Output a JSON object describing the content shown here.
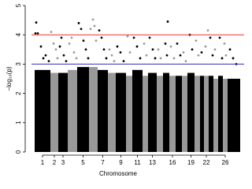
{
  "chart_data": {
    "type": "manhattan",
    "xlabel": "Chromosome",
    "ylabel": "−log₁₀(p)",
    "xlim": [
      0,
      270
    ],
    "ylim": [
      0,
      5
    ],
    "yticks": [
      0,
      1,
      2,
      3,
      4,
      5
    ],
    "thresholds": [
      {
        "value": 4,
        "color": "#e8362e"
      },
      {
        "value": 3,
        "color": "#2b2fb8"
      }
    ],
    "chromosomes": [
      {
        "name": "1",
        "start": 4,
        "end": 24,
        "color": "#000000",
        "top": 2.8,
        "x": [
          6,
          5,
          8,
          12,
          15,
          18,
          22
        ],
        "y": [
          4.42,
          4.05,
          4.05,
          3.6,
          3.2,
          3.3,
          3.1
        ]
      },
      {
        "name": "2",
        "start": 24,
        "end": 34,
        "color": "#999999",
        "top": 2.7,
        "x": [
          25,
          28,
          31,
          33
        ],
        "y": [
          4.1,
          3.7,
          3.5,
          3.2
        ]
      },
      {
        "name": "3",
        "start": 34,
        "end": 46,
        "color": "#000000",
        "top": 2.7,
        "x": [
          36,
          38,
          41,
          44
        ],
        "y": [
          3.6,
          3.9,
          3.3,
          3.1
        ]
      },
      {
        "name": null,
        "start": 46,
        "end": 58,
        "color": "#999999",
        "top": 2.8,
        "x": [
          48,
          51,
          54,
          57
        ],
        "y": [
          3.7,
          3.9,
          3.4,
          3.2
        ]
      },
      {
        "name": "5",
        "start": 58,
        "end": 73,
        "color": "#000000",
        "top": 2.9,
        "x": [
          60,
          63,
          66,
          69,
          72
        ],
        "y": [
          4.4,
          4.2,
          3.8,
          3.5,
          3.2
        ]
      },
      {
        "name": null,
        "start": 73,
        "end": 84,
        "color": "#999999",
        "top": 2.9,
        "x": [
          75,
          78,
          80,
          82
        ],
        "y": [
          4.2,
          4.52,
          4.3,
          3.8
        ]
      },
      {
        "name": "7",
        "start": 84,
        "end": 97,
        "color": "#000000",
        "top": 2.8,
        "x": [
          86,
          89,
          92,
          95
        ],
        "y": [
          4.15,
          3.9,
          3.5,
          3.2
        ]
      },
      {
        "name": null,
        "start": 97,
        "end": 107,
        "color": "#999999",
        "top": 2.7,
        "x": [
          99,
          102,
          105
        ],
        "y": [
          3.5,
          3.3,
          3.1
        ]
      },
      {
        "name": "9",
        "start": 107,
        "end": 120,
        "color": "#000000",
        "top": 2.7,
        "x": [
          109,
          113,
          117
        ],
        "y": [
          3.6,
          3.4,
          3.1
        ]
      },
      {
        "name": null,
        "start": 120,
        "end": 128,
        "color": "#999999",
        "top": 2.6,
        "x": [
          122,
          125
        ],
        "y": [
          3.95,
          3.4
        ]
      },
      {
        "name": "11",
        "start": 128,
        "end": 141,
        "color": "#000000",
        "top": 2.8,
        "x": [
          130,
          134,
          138
        ],
        "y": [
          3.9,
          3.6,
          3.2
        ]
      },
      {
        "name": null,
        "start": 141,
        "end": 148,
        "color": "#999999",
        "top": 2.6,
        "x": [
          143,
          146
        ],
        "y": [
          3.7,
          3.3
        ]
      },
      {
        "name": "13",
        "start": 148,
        "end": 159,
        "color": "#000000",
        "top": 2.7,
        "x": [
          150,
          154,
          157
        ],
        "y": [
          3.9,
          3.5,
          3.2
        ]
      },
      {
        "name": null,
        "start": 159,
        "end": 167,
        "color": "#999999",
        "top": 2.6,
        "x": [
          161,
          164
        ],
        "y": [
          3.5,
          3.2
        ]
      },
      {
        "name": null,
        "start": 167,
        "end": 175,
        "color": "#000000",
        "top": 2.7,
        "x": [
          170,
          173,
          172
        ],
        "y": [
          3.7,
          4.45,
          3.3
        ]
      },
      {
        "name": "16",
        "start": 175,
        "end": 183,
        "color": "#999999",
        "top": 2.6,
        "x": [
          177,
          181
        ],
        "y": [
          3.6,
          3.2
        ]
      },
      {
        "name": null,
        "start": 183,
        "end": 191,
        "color": "#000000",
        "top": 2.6,
        "x": [
          185,
          189
        ],
        "y": [
          3.7,
          3.3
        ]
      },
      {
        "name": null,
        "start": 191,
        "end": 198,
        "color": "#999999",
        "top": 2.6,
        "x": [
          193,
          196
        ],
        "y": [
          3.4,
          3.1
        ]
      },
      {
        "name": "19",
        "start": 198,
        "end": 207,
        "color": "#000000",
        "top": 2.7,
        "x": [
          201,
          204
        ],
        "y": [
          4.0,
          3.5
        ]
      },
      {
        "name": null,
        "start": 207,
        "end": 214,
        "color": "#999999",
        "top": 2.6,
        "x": [
          209,
          212
        ],
        "y": [
          3.8,
          3.3
        ]
      },
      {
        "name": null,
        "start": 214,
        "end": 219,
        "color": "#000000",
        "top": 2.6,
        "x": [
          216
        ],
        "y": [
          3.4
        ]
      },
      {
        "name": "22",
        "start": 219,
        "end": 225,
        "color": "#999999",
        "top": 2.6,
        "x": [
          221,
          224
        ],
        "y": [
          3.6,
          4.15
        ]
      },
      {
        "name": null,
        "start": 225,
        "end": 231,
        "color": "#000000",
        "top": 2.6,
        "x": [
          227,
          230
        ],
        "y": [
          3.9,
          3.3
        ]
      },
      {
        "name": null,
        "start": 231,
        "end": 237,
        "color": "#999999",
        "top": 2.5,
        "x": [
          233
        ],
        "y": [
          3.5
        ]
      },
      {
        "name": null,
        "start": 237,
        "end": 243,
        "color": "#000000",
        "top": 2.6,
        "x": [
          239,
          242
        ],
        "y": [
          3.9,
          3.2
        ]
      },
      {
        "name": "26",
        "start": 243,
        "end": 249,
        "color": "#999999",
        "top": 2.5,
        "x": [
          245,
          247
        ],
        "y": [
          3.7,
          3.3
        ]
      },
      {
        "name": null,
        "start": 249,
        "end": 265,
        "color": "#000000",
        "top": 2.5,
        "x": [
          252,
          256,
          260
        ],
        "y": [
          3.5,
          3.2,
          3.0
        ]
      }
    ]
  }
}
